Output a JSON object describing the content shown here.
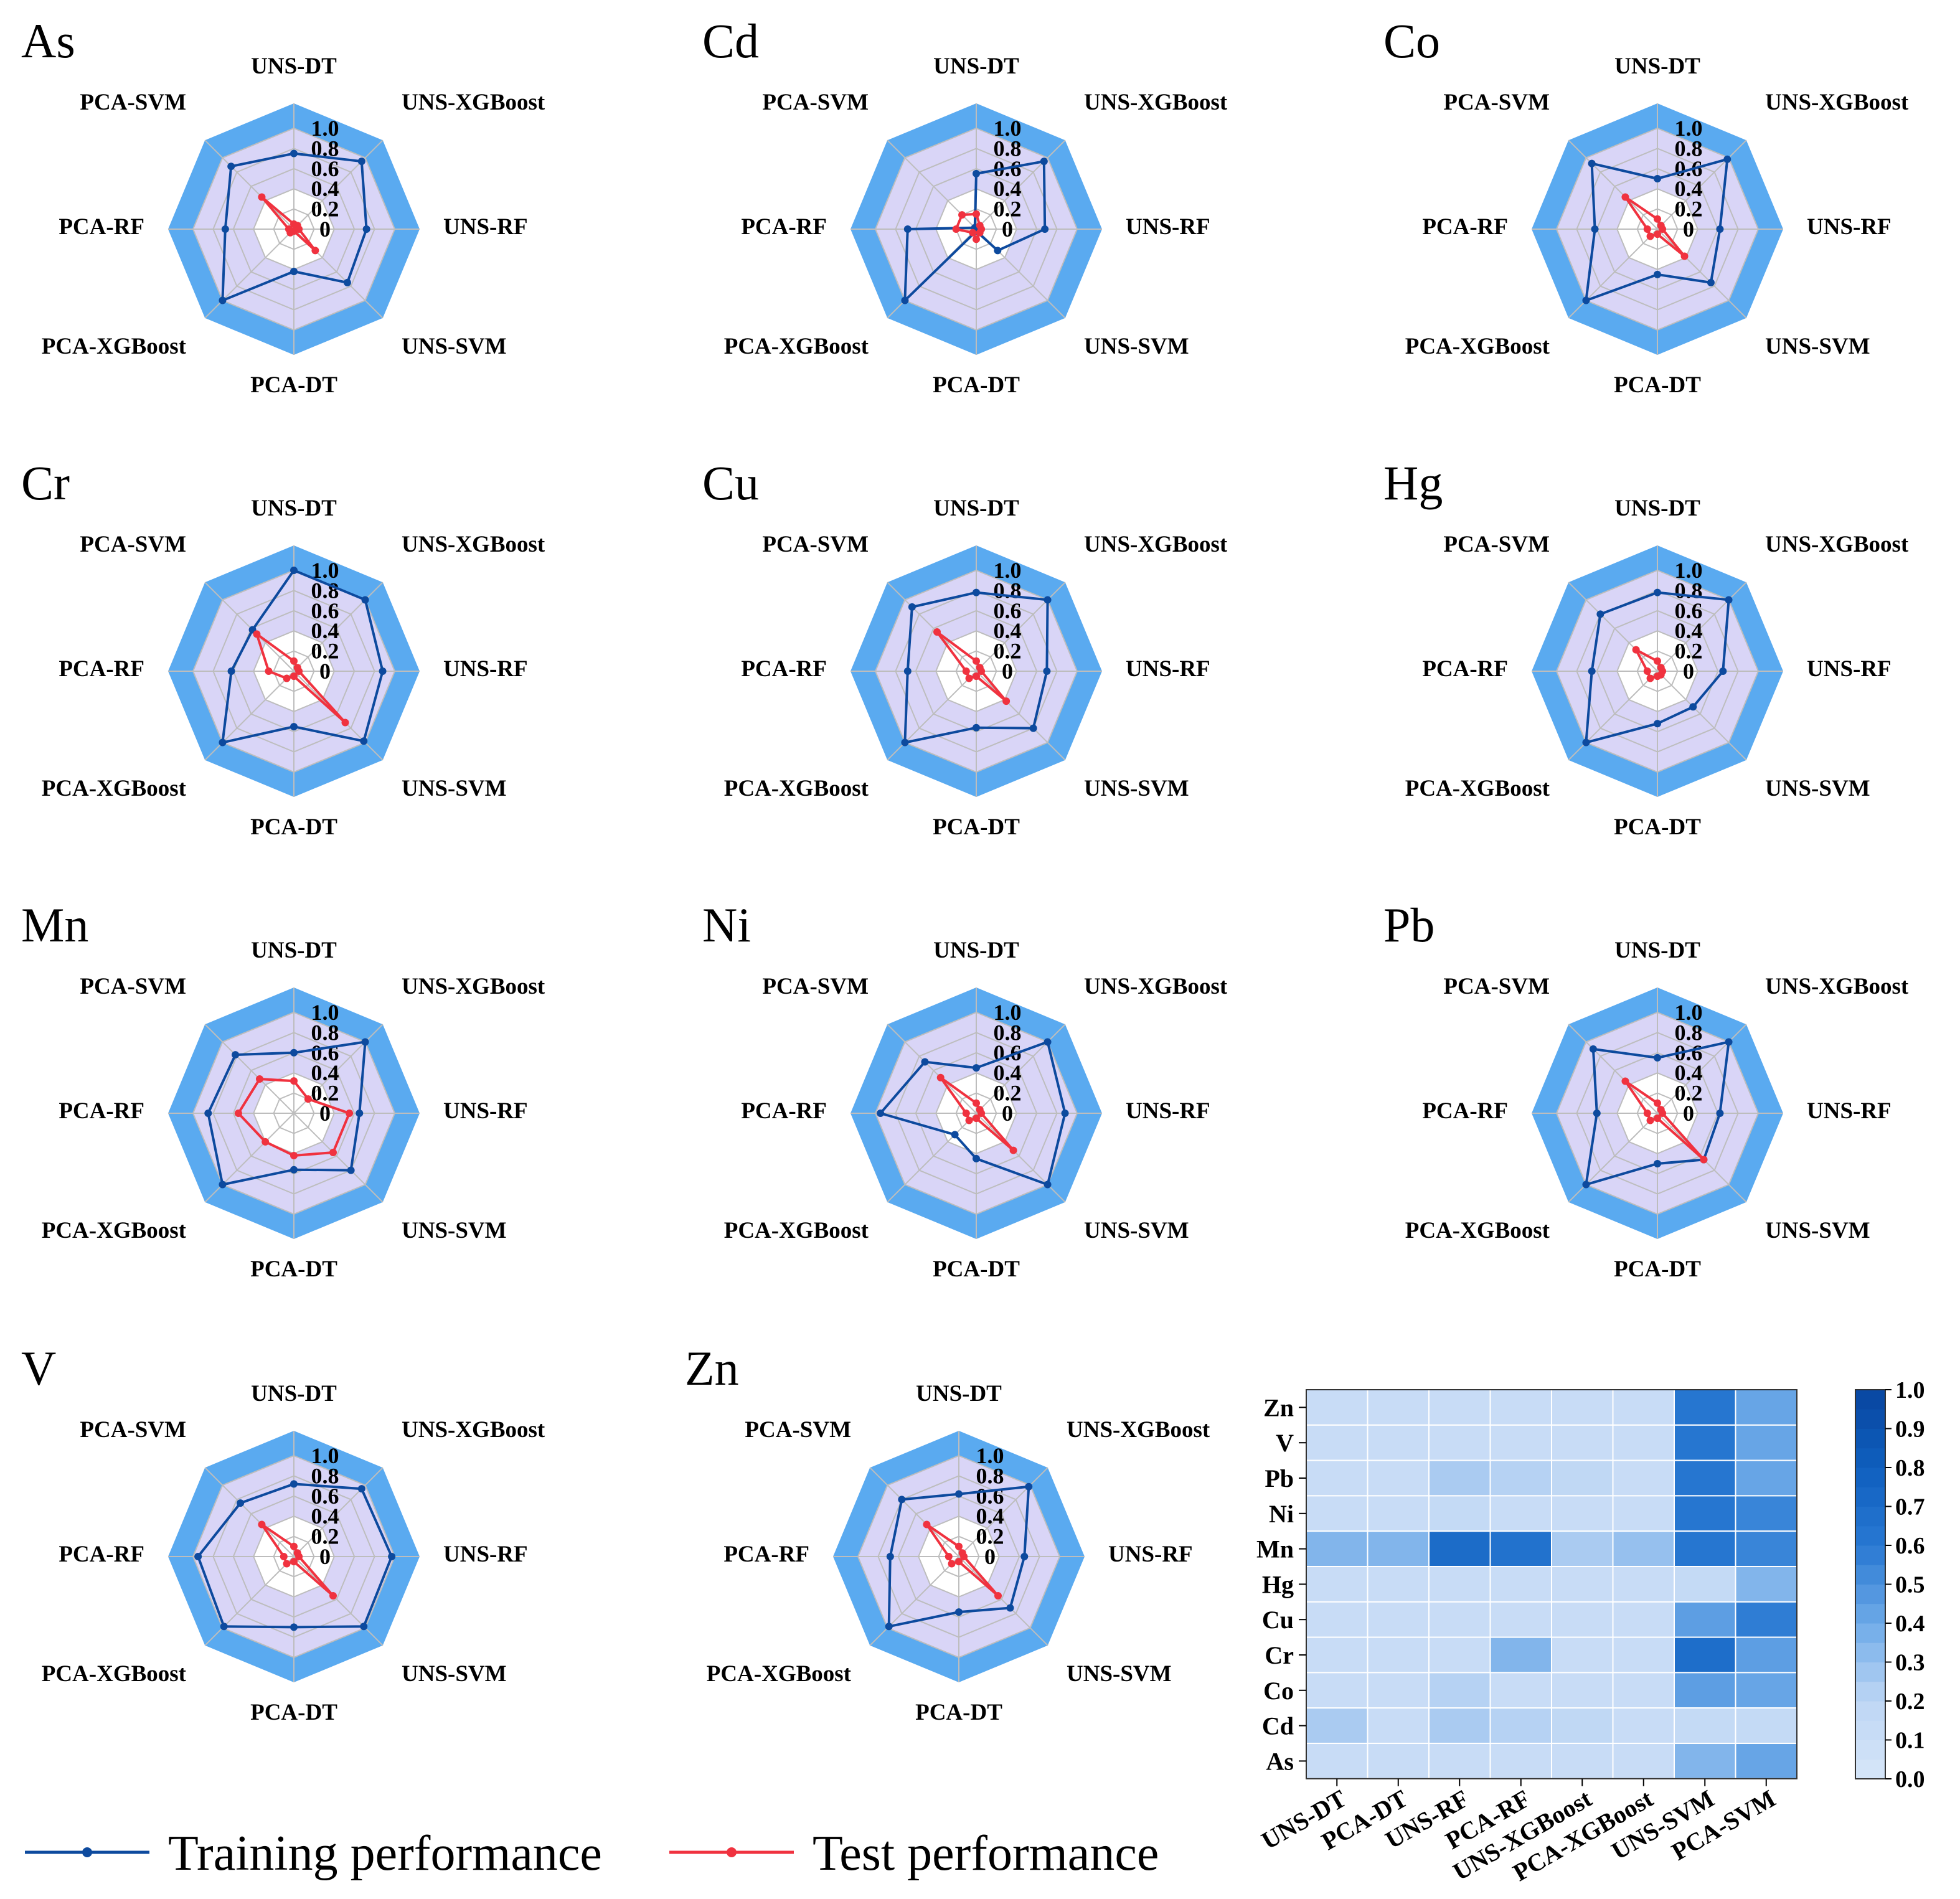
{
  "chart_data": {
    "type": "radar",
    "axes": [
      "UNS-DT",
      "UNS-XGBoost",
      "UNS-RF",
      "UNS-SVM",
      "PCA-DT",
      "PCA-XGBoost",
      "PCA-RF",
      "PCA-SVM"
    ],
    "rlim": [
      0,
      1.0
    ],
    "ticks": [
      "0",
      "0.2",
      "0.4",
      "0.6",
      "0.8",
      "1.0"
    ],
    "colors": {
      "training": "#0d4a9e",
      "test": "#f0323f",
      "band": "#5aaaf0",
      "inner": "#d9d5f7"
    },
    "panels": [
      {
        "title": "As",
        "training": [
          0.75,
          0.95,
          0.72,
          0.75,
          0.42,
          1.0,
          0.68,
          0.88
        ],
        "test": [
          0.05,
          0.05,
          0.05,
          0.3,
          0.02,
          0.05,
          0.05,
          0.45
        ]
      },
      {
        "title": "Cd",
        "training": [
          0.55,
          0.95,
          0.68,
          0.3,
          0.02,
          1.0,
          0.68,
          0.02
        ],
        "test": [
          0.15,
          0.05,
          0.05,
          0.05,
          0.1,
          0.05,
          0.2,
          0.2
        ]
      },
      {
        "title": "Co",
        "training": [
          0.5,
          0.98,
          0.62,
          0.75,
          0.45,
          1.0,
          0.62,
          0.92
        ],
        "test": [
          0.1,
          0.05,
          0.05,
          0.38,
          0.05,
          0.1,
          0.1,
          0.45
        ]
      },
      {
        "title": "Cr",
        "training": [
          1.0,
          1.0,
          0.88,
          0.98,
          0.55,
          1.0,
          0.62,
          0.58
        ],
        "test": [
          0.1,
          0.05,
          0.05,
          0.72,
          0.05,
          0.1,
          0.25,
          0.52
        ]
      },
      {
        "title": "Cu",
        "training": [
          0.78,
          1.0,
          0.7,
          0.8,
          0.56,
          1.0,
          0.68,
          0.9
        ],
        "test": [
          0.1,
          0.05,
          0.05,
          0.42,
          0.05,
          0.1,
          0.1,
          0.55
        ]
      },
      {
        "title": "Hg",
        "training": [
          0.78,
          1.0,
          0.65,
          0.5,
          0.52,
          1.0,
          0.65,
          0.8
        ],
        "test": [
          0.1,
          0.05,
          0.05,
          0.05,
          0.05,
          0.1,
          0.1,
          0.3
        ]
      },
      {
        "title": "Mn",
        "training": [
          0.6,
          1.0,
          0.65,
          0.8,
          0.56,
          1.0,
          0.85,
          0.82
        ],
        "test": [
          0.32,
          0.2,
          0.55,
          0.55,
          0.42,
          0.4,
          0.55,
          0.48
        ]
      },
      {
        "title": "Ni",
        "training": [
          0.45,
          1.0,
          0.88,
          1.0,
          0.45,
          0.3,
          0.95,
          0.72
        ],
        "test": [
          0.1,
          0.05,
          0.05,
          0.52,
          0.05,
          0.1,
          0.1,
          0.5
        ]
      },
      {
        "title": "Pb",
        "training": [
          0.55,
          1.0,
          0.62,
          0.65,
          0.5,
          1.0,
          0.6,
          0.9
        ],
        "test": [
          0.1,
          0.05,
          0.05,
          0.65,
          0.05,
          0.1,
          0.1,
          0.45
        ]
      },
      {
        "title": "V",
        "training": [
          0.72,
          0.95,
          0.97,
          0.98,
          0.7,
          0.98,
          0.95,
          0.75
        ],
        "test": [
          0.1,
          0.05,
          0.05,
          0.55,
          0.05,
          0.1,
          0.1,
          0.45
        ]
      },
      {
        "title": "Zn",
        "training": [
          0.62,
          0.98,
          0.65,
          0.72,
          0.55,
          0.98,
          0.68,
          0.8
        ],
        "test": [
          0.1,
          0.05,
          0.05,
          0.55,
          0.05,
          0.1,
          0.1,
          0.45
        ]
      }
    ],
    "legend": {
      "training": "Training performance",
      "test": "Test performance"
    },
    "heatmap": {
      "type": "heatmap",
      "rows": [
        "Zn",
        "V",
        "Pb",
        "Ni",
        "Mn",
        "Hg",
        "Cu",
        "Cr",
        "Co",
        "Cd",
        "As"
      ],
      "cols": [
        "UNS-DT",
        "PCA-DT",
        "UNS-RF",
        "PCA-RF",
        "UNS-XGBoost",
        "PCA-XGBoost",
        "UNS-SVM",
        "PCA-SVM"
      ],
      "values": [
        [
          0.12,
          0.12,
          0.12,
          0.12,
          0.12,
          0.12,
          0.62,
          0.42
        ],
        [
          0.12,
          0.12,
          0.12,
          0.12,
          0.12,
          0.12,
          0.62,
          0.42
        ],
        [
          0.12,
          0.12,
          0.25,
          0.22,
          0.18,
          0.12,
          0.62,
          0.42
        ],
        [
          0.12,
          0.12,
          0.15,
          0.12,
          0.12,
          0.12,
          0.62,
          0.55
        ],
        [
          0.35,
          0.35,
          0.7,
          0.65,
          0.25,
          0.3,
          0.62,
          0.55
        ],
        [
          0.12,
          0.12,
          0.12,
          0.12,
          0.12,
          0.12,
          0.15,
          0.35
        ],
        [
          0.12,
          0.12,
          0.12,
          0.12,
          0.12,
          0.12,
          0.45,
          0.58
        ],
        [
          0.12,
          0.12,
          0.12,
          0.35,
          0.12,
          0.12,
          0.68,
          0.45
        ],
        [
          0.12,
          0.12,
          0.22,
          0.12,
          0.12,
          0.12,
          0.45,
          0.42
        ],
        [
          0.25,
          0.12,
          0.25,
          0.22,
          0.18,
          0.12,
          0.15,
          0.15
        ],
        [
          0.12,
          0.12,
          0.12,
          0.12,
          0.12,
          0.12,
          0.35,
          0.42
        ]
      ],
      "vmin": 0.0,
      "vmax": 1.0,
      "colorbar_ticks": [
        "0.0",
        "0.1",
        "0.2",
        "0.3",
        "0.4",
        "0.5",
        "0.6",
        "0.7",
        "0.8",
        "0.9",
        "1.0"
      ]
    }
  }
}
